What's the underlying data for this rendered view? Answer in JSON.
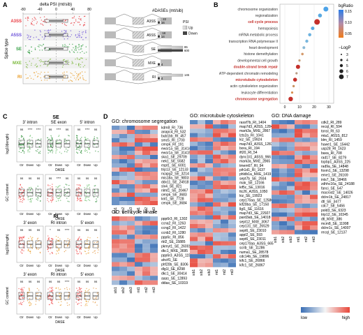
{
  "panels": {
    "A": "A",
    "B": "B",
    "C": "C",
    "D": "D"
  },
  "panelA": {
    "xaxis_title": "delta PSI (mt/sib)",
    "xticks": [
      "-80",
      "-40",
      "0",
      "40",
      "80"
    ],
    "yaxis_title": "Splice type",
    "types": [
      {
        "name": "A3SS",
        "color": "#e8333a"
      },
      {
        "name": "A5SS",
        "color": "#6a4fd8"
      },
      {
        "name": "SE",
        "color": "#2e9c3f"
      },
      {
        "name": "MXE",
        "color": "#7ab83a"
      },
      {
        "name": "RI",
        "color": "#e89a22"
      }
    ],
    "bar_title": "#DASEs (mt/sib)",
    "legend_title": "PSI",
    "legend_up": "Up",
    "legend_down": "Down",
    "bars": [
      {
        "type": "A3SS",
        "up": 22,
        "down": 16
      },
      {
        "type": "A5SS",
        "up": 18,
        "down": 14
      },
      {
        "type": "SE",
        "up": 85,
        "down": 600
      },
      {
        "type": "MXE",
        "up": 0,
        "down": 4
      },
      {
        "type": "RI",
        "up": 145,
        "down": 4
      }
    ]
  },
  "panelB": {
    "terms": [
      {
        "label": "chromosome organization",
        "color": "#4da3e8",
        "highlight": false
      },
      {
        "label": "regionalization",
        "color": "#5aaae2",
        "highlight": false
      },
      {
        "label": "cell cycle process",
        "color": "#c4302b",
        "highlight": true
      },
      {
        "label": "hemopoiesis",
        "color": "#5aaae2",
        "highlight": false
      },
      {
        "label": "mRNA metabolic process",
        "color": "#6cb2df",
        "highlight": false
      },
      {
        "label": "transcription RNA polymerase II",
        "color": "#78b6dd",
        "highlight": false
      },
      {
        "label": "heart development",
        "color": "#8abad6",
        "highlight": false
      },
      {
        "label": "histone demethylation",
        "color": "#d49a6c",
        "highlight": false
      },
      {
        "label": "developmental cell growth",
        "color": "#c7a07a",
        "highlight": false
      },
      {
        "label": "double-strand break repair",
        "color": "#c4302b",
        "highlight": true
      },
      {
        "label": "ATP-dependent chromatin remodeling",
        "color": "#b79a82",
        "highlight": false
      },
      {
        "label": "microtubule cytoskeleton",
        "color": "#c4302b",
        "highlight": true
      },
      {
        "label": "actin cytoskeleton organization",
        "color": "#c99563",
        "highlight": false
      },
      {
        "label": "leukocyte differentiation",
        "color": "#d88f4f",
        "highlight": false
      },
      {
        "label": "chromosome segregation",
        "color": "#c4302b",
        "highlight": true
      }
    ],
    "xticks": [
      "0",
      "10",
      "20",
      "30"
    ],
    "colorbar_title": "bgRatio",
    "colorbar_ticks": [
      "0.15",
      "0.10",
      "0.05"
    ],
    "size_title": "−LogP",
    "size_ticks": [
      "3",
      "4",
      "5",
      "6",
      "7"
    ]
  },
  "panelC": {
    "se_title": "SE",
    "ri_title": "RI",
    "se_cols": [
      "3' intron",
      "SE exon",
      "5' intron"
    ],
    "ri_cols": [
      "3' exon",
      "RI intron",
      "5' exon"
    ],
    "ylabel_len": "log10(length)",
    "ylabel_gc": "GC content",
    "xlabel": "DASE",
    "groups": [
      "Ctr",
      "Down",
      "Up"
    ],
    "sig_se_len": [
      "ns",
      "****",
      "****",
      "ns",
      "****",
      "ns",
      "ns",
      "****",
      "ns"
    ],
    "sig_se_gc": [
      "ns",
      "ns",
      "ns",
      "ns",
      "****",
      "ns",
      "ns",
      "ns",
      "ns"
    ],
    "sig_ri_len": [
      "ns",
      "ns",
      "ns",
      "*",
      "ns",
      "****",
      "ns",
      "ns",
      "ns"
    ],
    "sig_ri_gc": [
      "ns",
      "ns",
      "ns",
      "ns",
      "ns",
      "****",
      "ns",
      "ns",
      "ns"
    ]
  },
  "panelD": {
    "col_labels": [
      "sib1",
      "sib2",
      "sib3",
      "mt1",
      "mt2",
      "mt3"
    ],
    "legend_low": "low",
    "legend_high": "high",
    "blocks": [
      {
        "title": "GO: chromosome segregation",
        "genes": [
          "kdm8_RI_736",
          "anapc4_RI_532",
          "bub1bb_RI_457",
          "smc5_RI_1700",
          "cenpk_RI_191",
          "ewsr1a_SE_31414",
          "ewsr1a_SE_31415",
          "ska1_SE_29709",
          "nek1_SE_5582",
          "espl1_SE_6001",
          "trip13_SE_12133",
          "ncapg2_SE_3214",
          "mis18a_SE_9803",
          "ddx11_SE_24918",
          "slx4_SE_821",
          "nlmt1_SE_20467",
          "cenpk_SE_3683",
          "knl1_SE_7728",
          "cenpk_SE_3684"
        ]
      },
      {
        "title": "GO: cell cycle kinase",
        "genes": [
          "ppp6r3_RI_1302",
          "ccna2_RI_1263",
          "ccng2_RI_1422",
          "ccnb2_RI_1280",
          "ppp6c_RI_856",
          "rbl2_SE_15885",
          "pkmyt1_SE_26001",
          "dkc1_MXE_3695",
          "ppp6r3_A3SS_1155",
          "ahctf1_SE",
          "phf20b_SE_8306",
          "dlg1l_SE_8298",
          "dkc1_SE_30414",
          "aaas_SE_12893",
          "ddias_SE_10319"
        ]
      },
      {
        "title": "GO: microtubule cytoskeleton",
        "genes": [
          "rassf7b_RI_1404",
          "map7d3_A3SS_1284",
          "mark3a_MXE_2867",
          "lzts2a_RI_1041",
          "kiz_SE_19924",
          "map7d3_A3SS_1283",
          "bora_RI_194",
          "ift20_RI_54",
          "dync1li1_A5SS_966",
          "mark3a_MXE_2865",
          "tmem67_RI_94",
          "pih1d1_RI_1637",
          "phldb1a_MXE_1419",
          "sept7b_SE_2934",
          "mak_SE_12166",
          "kif5c_SE_13016",
          "ttc26_A3SS_1050",
          "kiz_SE_19923",
          "cep170aa_SE_12580",
          "kif20ba_SE_17150",
          "llgl1_SE_11616",
          "map7d3_SE_22927",
          "pard3ab_SE_14018",
          "sept12_MXE_3067",
          "cep131_SE_26529",
          "sept6_SE_23010",
          "appl2_SE_593",
          "sept6_SE_23011",
          "cep170aa_A3SS_665",
          "scrib_SE_11286",
          "numa1_SE_28578",
          "cdc14b_SE_19896",
          "kifc1_SE_26866",
          "kifc1_SE_26867"
        ]
      },
      {
        "title": "GO: DNA damage",
        "genes": [
          "cdk2_RI_289",
          "recql_RI_594",
          "tonsl_RI_63",
          "mta1_A5SS_812",
          "blm_RI_1459",
          "huwe1_SE_15442",
          "usp28_RI_1623",
          "baxa_RI_708",
          "rad17_SE_8279",
          "topbp1_A3SS_225",
          "rad9a_SE_14848",
          "foxm1_SE_13298",
          "eme1_SE_26169",
          "ints7_SE_18466",
          "zdhhc16a_SE_24188",
          "fanci_SE_547",
          "macrod2_SE_14026",
          "dclre1b_SE_24817",
          "dtl_SE_3477",
          "cdc7_SE_5456",
          "pold3_SE_6323",
          "trip12_SE_10345",
          "dtl_MXE_386",
          "mcm8_SE_11998",
          "dclre1c_SE_14007",
          "recql_SE_12137"
        ]
      }
    ]
  }
}
